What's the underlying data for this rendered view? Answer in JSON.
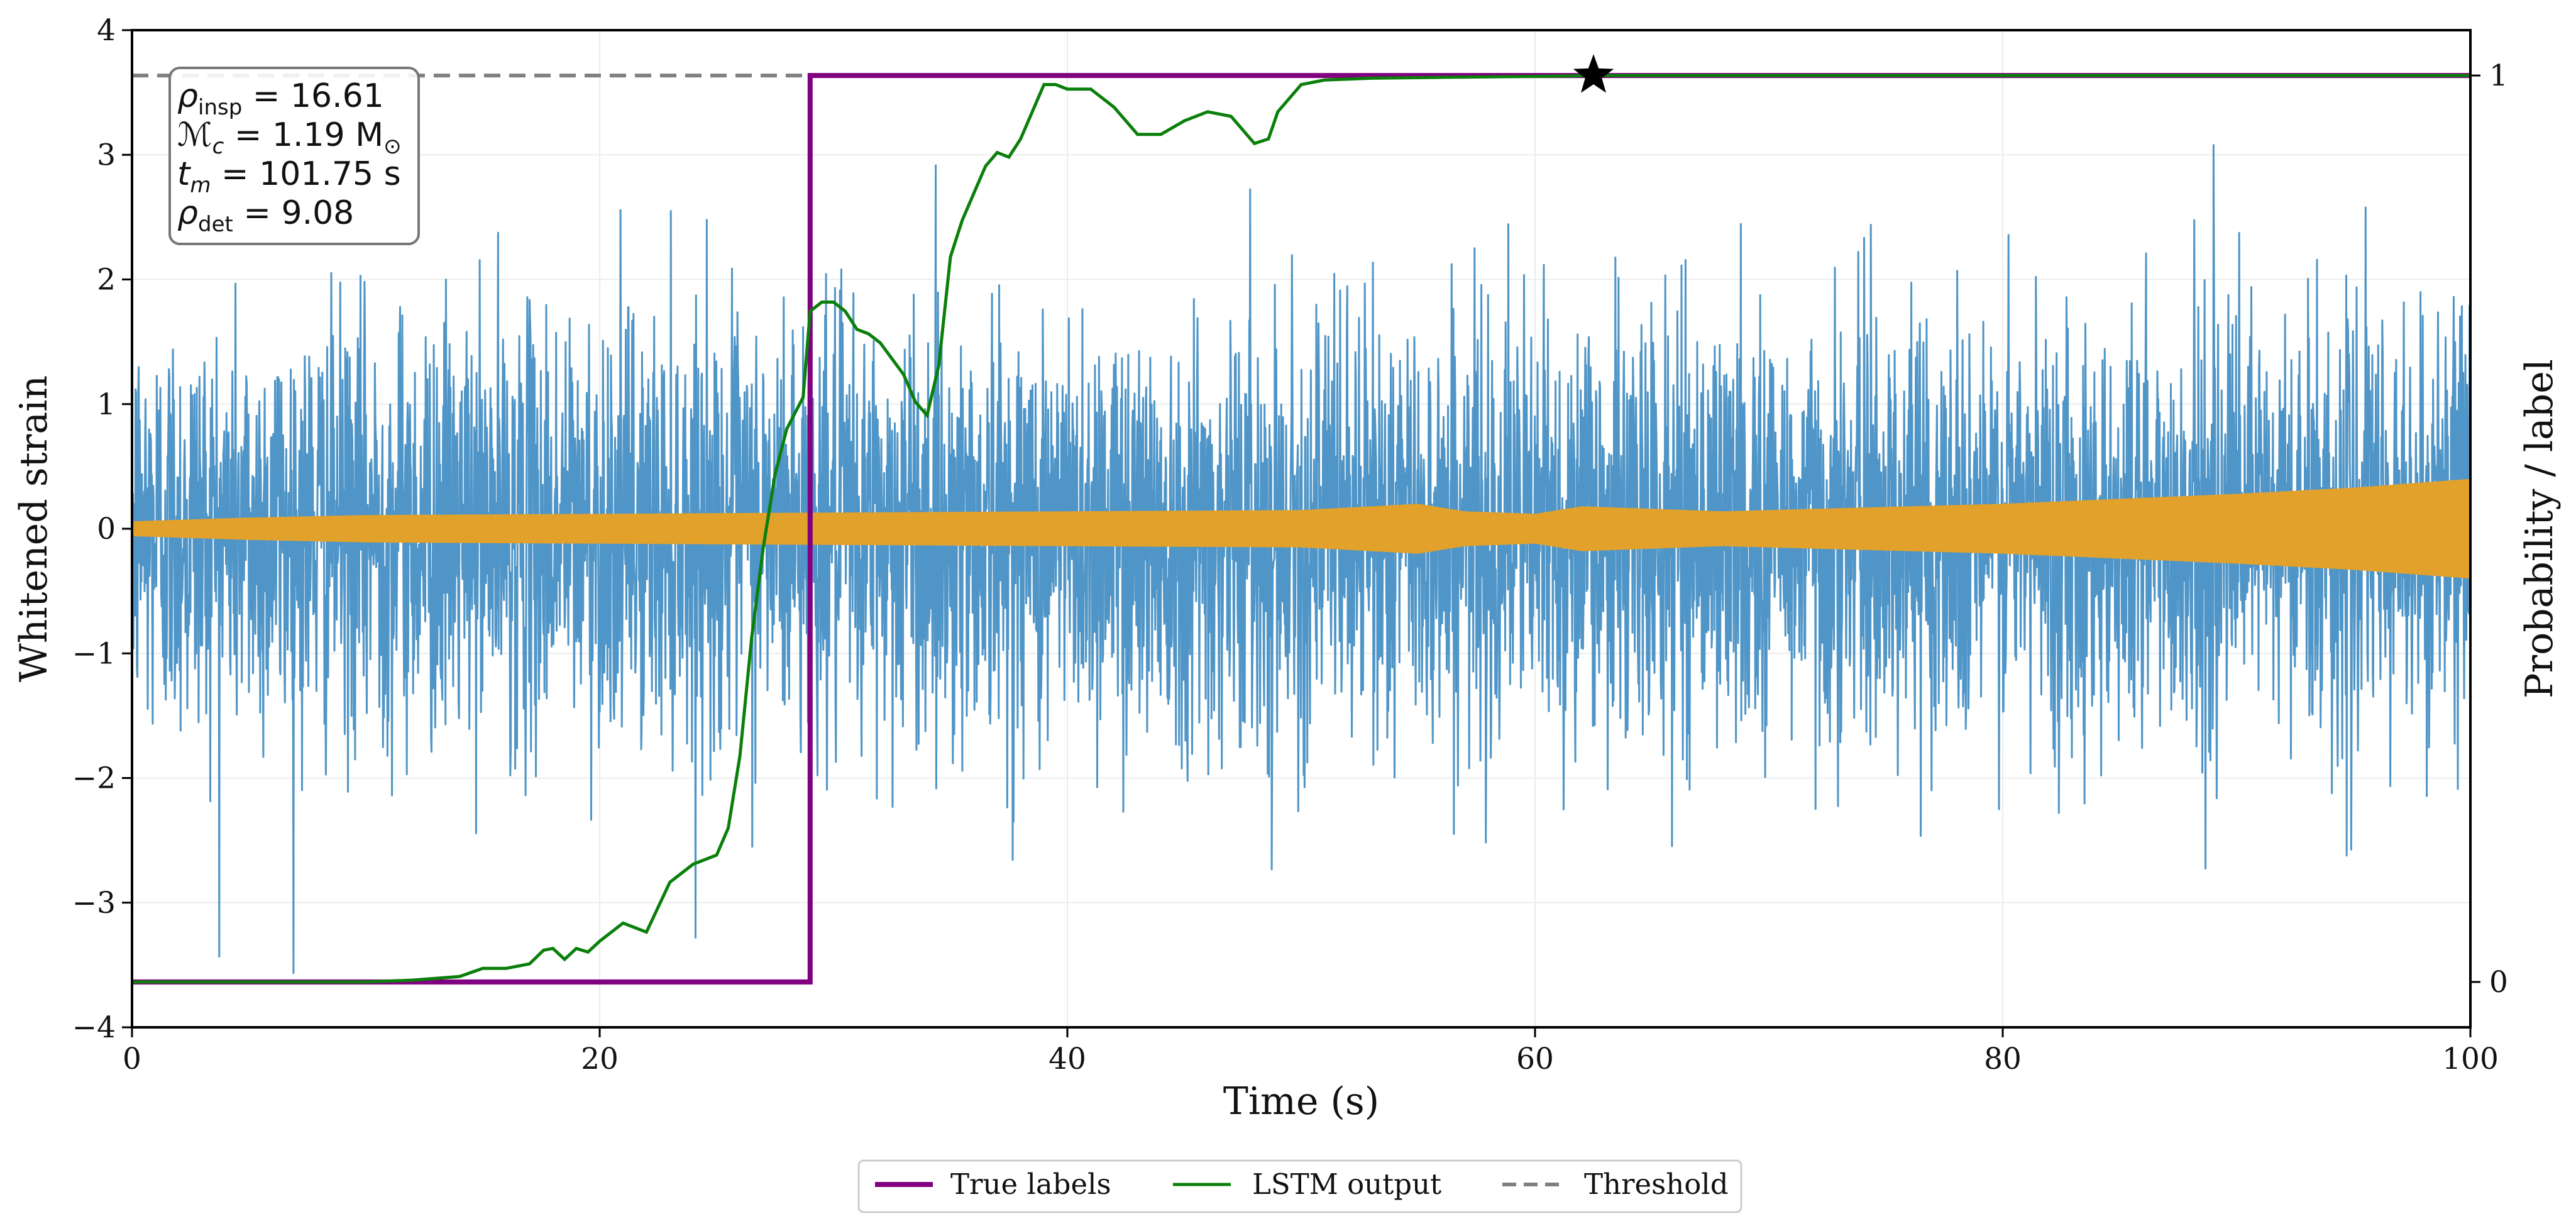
{
  "chart_data": {
    "type": "line",
    "xlabel": "Time (s)",
    "ylabel_left": "Whitened strain",
    "ylabel_right": "Probability / label",
    "xlim": [
      0,
      100
    ],
    "ylim_left": [
      -4,
      4
    ],
    "ylim_right": [
      -0.05,
      1.05
    ],
    "x_ticks": [
      0,
      20,
      40,
      60,
      80,
      100
    ],
    "x_tick_labels": [
      "0",
      "20",
      "40",
      "60",
      "80",
      "100"
    ],
    "y_ticks_left": [
      -4,
      -3,
      -2,
      -1,
      0,
      1,
      2,
      3,
      4
    ],
    "y_tick_labels_left": [
      "−4",
      "−3",
      "−2",
      "−1",
      "0",
      "1",
      "2",
      "3",
      "4"
    ],
    "y_ticks_right": [
      0,
      1
    ],
    "y_tick_labels_right": [
      "0",
      "1"
    ],
    "grid": true,
    "annotation": {
      "line1_sym": "ρ",
      "line1_sub": "insp",
      "line1_val": " = 16.61",
      "line2_sym": "ℳ",
      "line2_sub": "c",
      "line2_val": " = 1.19 M",
      "line2_unit_sub": "⊙",
      "line3_sym": "t",
      "line3_sub": "m",
      "line3_val": " = 101.75 s",
      "line4_sym": "ρ",
      "line4_sub": "det",
      "line4_val": " = 9.08"
    },
    "strain": {
      "color": "#4f95c7",
      "noise_sigma": 0.85,
      "duration_s": 100
    },
    "signal_envelope": {
      "color": "#e1a12b",
      "points": [
        [
          0,
          0.06
        ],
        [
          5,
          0.09
        ],
        [
          10,
          0.11
        ],
        [
          20,
          0.12
        ],
        [
          30,
          0.13
        ],
        [
          40,
          0.14
        ],
        [
          50,
          0.15
        ],
        [
          55,
          0.2
        ],
        [
          57,
          0.14
        ],
        [
          60,
          0.12
        ],
        [
          62,
          0.18
        ],
        [
          65,
          0.16
        ],
        [
          68,
          0.14
        ],
        [
          70,
          0.15
        ],
        [
          80,
          0.2
        ],
        [
          90,
          0.28
        ],
        [
          95,
          0.33
        ],
        [
          100,
          0.4
        ]
      ]
    },
    "series": [
      {
        "name": "True labels",
        "color": "#800080",
        "x": [
          0,
          29,
          29,
          100
        ],
        "y": [
          0,
          0,
          1,
          1
        ]
      },
      {
        "name": "LSTM output",
        "color": "#0a7f0a",
        "x": [
          0,
          10,
          12,
          14,
          15,
          16,
          17,
          17.6,
          18,
          18.5,
          19,
          19.5,
          20,
          21,
          22,
          23,
          24,
          25,
          25.5,
          26,
          26.5,
          27,
          27.5,
          28,
          28.7,
          29,
          29.5,
          30,
          30.5,
          31,
          31.5,
          32,
          33,
          33.5,
          34,
          34.5,
          35,
          35.5,
          36,
          36.5,
          37,
          37.5,
          38,
          38.5,
          39,
          39.5,
          40,
          41,
          42,
          43,
          44,
          45,
          46,
          47,
          48,
          48.6,
          49,
          50,
          51,
          53,
          56,
          60,
          62.5,
          70,
          80,
          100
        ],
        "y": [
          0,
          0,
          0.002,
          0.006,
          0.015,
          0.015,
          0.02,
          0.035,
          0.037,
          0.025,
          0.037,
          0.033,
          0.045,
          0.065,
          0.055,
          0.11,
          0.13,
          0.14,
          0.17,
          0.25,
          0.38,
          0.48,
          0.56,
          0.61,
          0.645,
          0.74,
          0.75,
          0.75,
          0.74,
          0.72,
          0.715,
          0.705,
          0.67,
          0.64,
          0.625,
          0.68,
          0.8,
          0.84,
          0.87,
          0.9,
          0.915,
          0.91,
          0.93,
          0.96,
          0.99,
          0.99,
          0.985,
          0.985,
          0.965,
          0.935,
          0.935,
          0.95,
          0.96,
          0.955,
          0.925,
          0.93,
          0.96,
          0.99,
          0.995,
          0.997,
          0.998,
          0.999,
          1.0,
          1.0,
          1.0,
          1.0
        ]
      },
      {
        "name": "Threshold",
        "color": "#808080",
        "style": "dashed",
        "y": 1.0
      }
    ],
    "detection_marker": {
      "x": 62.5,
      "y": 1.0,
      "shape": "star"
    },
    "legend": {
      "location": "bottom-center",
      "entries": [
        "True labels",
        "LSTM output",
        "Threshold"
      ]
    }
  }
}
